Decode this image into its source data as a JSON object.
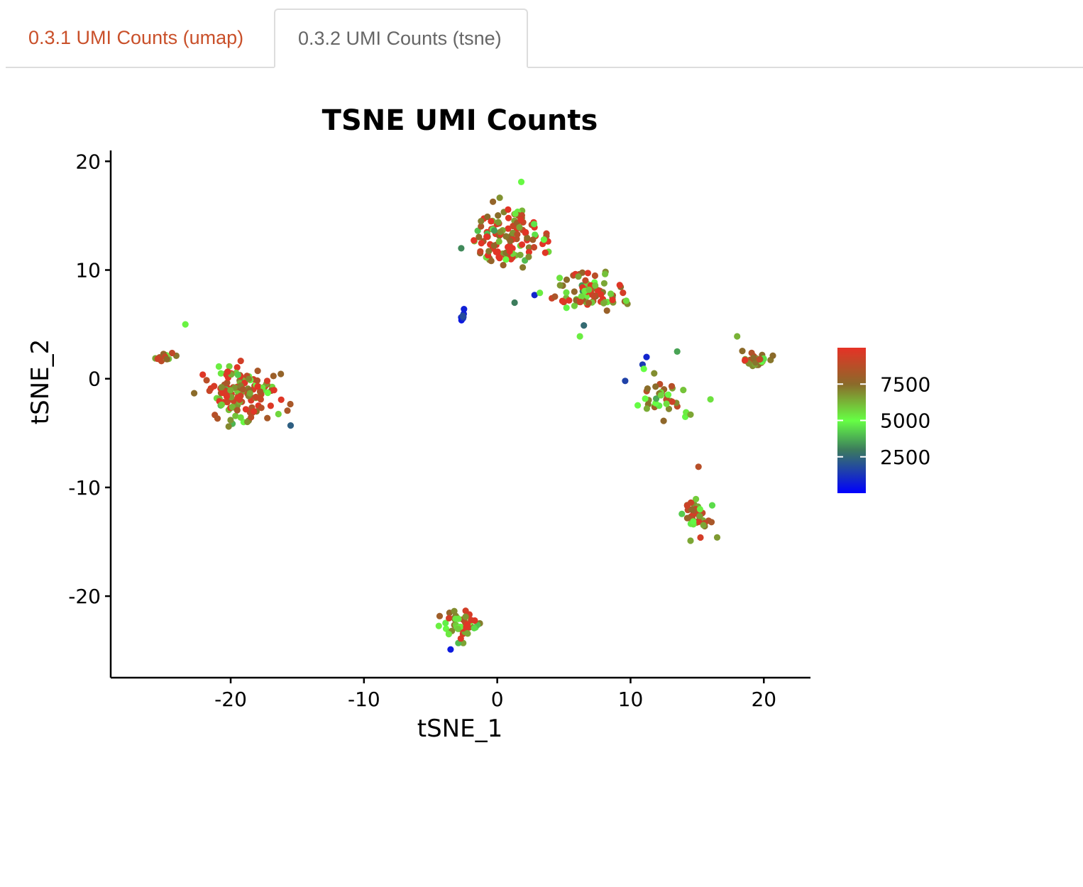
{
  "tabs": [
    {
      "label": "0.3.1 UMI Counts (umap)",
      "active": false
    },
    {
      "label": "0.3.2 UMI Counts (tsne)",
      "active": true
    }
  ],
  "chart_data": {
    "type": "scatter",
    "title": "TSNE UMI Counts",
    "xlabel": "tSNE_1",
    "ylabel": "tSNE_2",
    "xlim": [
      -29,
      23.5
    ],
    "ylim": [
      -27.5,
      21
    ],
    "xticks": [
      -20,
      -10,
      0,
      10,
      20
    ],
    "yticks": [
      20,
      10,
      0,
      -10,
      -20
    ],
    "xtick_labels": [
      "-20",
      "-10",
      "0",
      "10",
      "20"
    ],
    "ytick_labels": [
      "20",
      "10",
      "0",
      "-10",
      "-20"
    ],
    "grid": false,
    "legend": {
      "position": "right",
      "type": "colorbar",
      "range": [
        0,
        10000
      ],
      "ticks": [
        7500,
        5000,
        2500
      ],
      "tick_labels": [
        "7500",
        "5000",
        "2500"
      ],
      "gradient": [
        "#e63226",
        "#8b6a2a",
        "#66ff44",
        "#3c7c5c",
        "#0000ff"
      ],
      "gradient_stops": [
        10000,
        7500,
        5000,
        3000,
        0
      ]
    },
    "clusters": [
      {
        "name": "",
        "center": [
          -19,
          -1.3
        ],
        "spread": [
          2.5,
          2.5
        ],
        "n": 140,
        "umi_range": [
          3500,
          9800
        ],
        "color_bias": 7600
      },
      {
        "name": "",
        "center": [
          -25,
          1.9
        ],
        "spread": [
          1.0,
          0.35
        ],
        "n": 14,
        "umi_range": [
          4500,
          9800
        ],
        "color_bias": 7000
      },
      {
        "name": "",
        "center": [
          0.8,
          13.2
        ],
        "spread": [
          2.6,
          2.4
        ],
        "n": 120,
        "umi_range": [
          3000,
          9900
        ],
        "color_bias": 8300
      },
      {
        "name": "",
        "center": [
          7.2,
          8.0
        ],
        "spread": [
          2.3,
          1.9
        ],
        "n": 80,
        "umi_range": [
          3000,
          9800
        ],
        "color_bias": 8000
      },
      {
        "name": "",
        "center": [
          -2.5,
          5.8
        ],
        "spread": [
          0.2,
          0.5
        ],
        "n": 8,
        "umi_range": [
          300,
          2000
        ],
        "color_bias": 800
      },
      {
        "name": "",
        "center": [
          12.5,
          -1.8
        ],
        "spread": [
          1.5,
          1.8
        ],
        "n": 35,
        "umi_range": [
          3500,
          9500
        ],
        "color_bias": 7300
      },
      {
        "name": "",
        "center": [
          19.3,
          1.7
        ],
        "spread": [
          1.0,
          0.6
        ],
        "n": 32,
        "umi_range": [
          4500,
          9900
        ],
        "color_bias": 8500
      },
      {
        "name": "",
        "center": [
          15.0,
          -12.8
        ],
        "spread": [
          0.9,
          1.5
        ],
        "n": 38,
        "umi_range": [
          3500,
          9500
        ],
        "color_bias": 7200
      },
      {
        "name": "",
        "center": [
          -2.7,
          -22.6
        ],
        "spread": [
          1.3,
          1.3
        ],
        "n": 50,
        "umi_range": [
          3500,
          9800
        ],
        "color_bias": 7300
      }
    ],
    "points": [
      {
        "x": -23.4,
        "y": 5.0,
        "umi": 5200
      },
      {
        "x": -15.5,
        "y": -4.3,
        "umi": 2300
      },
      {
        "x": 1.8,
        "y": 18.1,
        "umi": 5100
      },
      {
        "x": 1.3,
        "y": 7.0,
        "umi": 3000
      },
      {
        "x": 2.8,
        "y": 7.7,
        "umi": 900
      },
      {
        "x": 3.2,
        "y": 7.9,
        "umi": 5300
      },
      {
        "x": 10.9,
        "y": 1.3,
        "umi": 1400
      },
      {
        "x": 11.2,
        "y": 2.0,
        "umi": 900
      },
      {
        "x": 9.6,
        "y": -0.2,
        "umi": 1600
      },
      {
        "x": 13.5,
        "y": 2.5,
        "umi": 3600
      },
      {
        "x": 18.0,
        "y": 3.9,
        "umi": 6300
      },
      {
        "x": -3.5,
        "y": -24.9,
        "umi": 600
      },
      {
        "x": 15.1,
        "y": -8.1,
        "umi": 8700
      },
      {
        "x": 14.5,
        "y": -14.9,
        "umi": 6500
      },
      {
        "x": 16.5,
        "y": -14.6,
        "umi": 6700
      },
      {
        "x": 6.5,
        "y": 4.9,
        "umi": 2600
      },
      {
        "x": 6.2,
        "y": 3.9,
        "umi": 5300
      },
      {
        "x": 11.0,
        "y": 0.9,
        "umi": 5000
      },
      {
        "x": 14.5,
        "y": -3.3,
        "umi": 6500
      },
      {
        "x": 16.0,
        "y": -1.9,
        "umi": 5500
      },
      {
        "x": -2.7,
        "y": 12.0,
        "umi": 3200
      },
      {
        "x": 3.5,
        "y": 12.8,
        "umi": 5200
      }
    ]
  }
}
